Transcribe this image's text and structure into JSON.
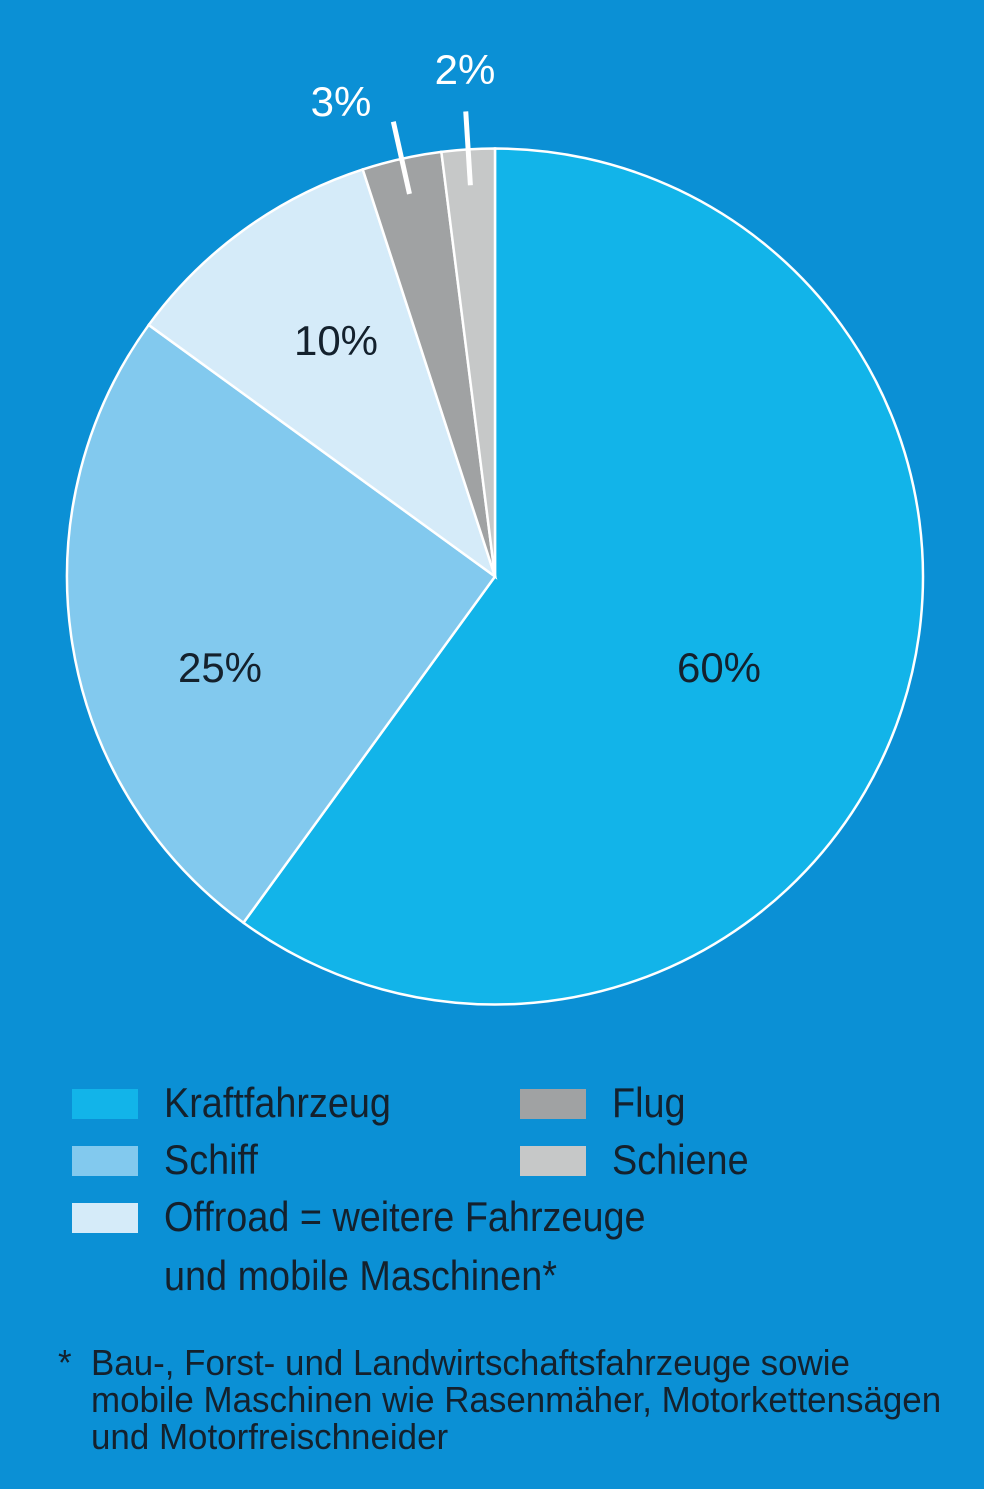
{
  "colors": {
    "background": "#0b90d5",
    "text_dark": "#14212d",
    "text_light": "#ffffff",
    "slice_divider": "#ffffff"
  },
  "chart_data": {
    "type": "pie",
    "title": "",
    "units": "percent",
    "start_angle_deg": 0,
    "direction": "clockwise",
    "legend_position": "bottom",
    "slices": [
      {
        "name": "Kraftfahrzeug",
        "value": 60,
        "label": "60%",
        "color": "#12b4e9",
        "label_style": "dark",
        "leader_line": false
      },
      {
        "name": "Schiff",
        "value": 25,
        "label": "25%",
        "color": "#82c9ee",
        "label_style": "dark",
        "leader_line": false
      },
      {
        "name": "Offroad",
        "value": 10,
        "label": "10%",
        "color": "#d5ebf9",
        "label_style": "dark",
        "leader_line": false
      },
      {
        "name": "Flug",
        "value": 3,
        "label": "3%",
        "color": "#a0a2a3",
        "label_style": "light",
        "leader_line": true
      },
      {
        "name": "Schiene",
        "value": 2,
        "label": "2%",
        "color": "#c6c8c8",
        "label_style": "light",
        "leader_line": true
      }
    ]
  },
  "legend": {
    "columns": [
      {
        "items": [
          {
            "slice_index": 0,
            "label_lines": [
              "Kraftfahrzeug"
            ]
          },
          {
            "slice_index": 1,
            "label_lines": [
              "Schiff"
            ]
          },
          {
            "slice_index": 2,
            "label_lines": [
              "Offroad = weitere Fahrzeuge",
              "und mobile Maschinen*"
            ]
          }
        ]
      },
      {
        "items": [
          {
            "slice_index": 3,
            "label_lines": [
              "Flug"
            ]
          },
          {
            "slice_index": 4,
            "label_lines": [
              "Schiene"
            ]
          }
        ]
      }
    ]
  },
  "footnote": {
    "marker": "*",
    "lines": [
      "Bau-, Forst- und Landwirtschaftsfahrzeuge sowie",
      "mobile Maschinen wie Rasenmäher, Motorkettensägen",
      "und Motorfreischneider"
    ]
  }
}
